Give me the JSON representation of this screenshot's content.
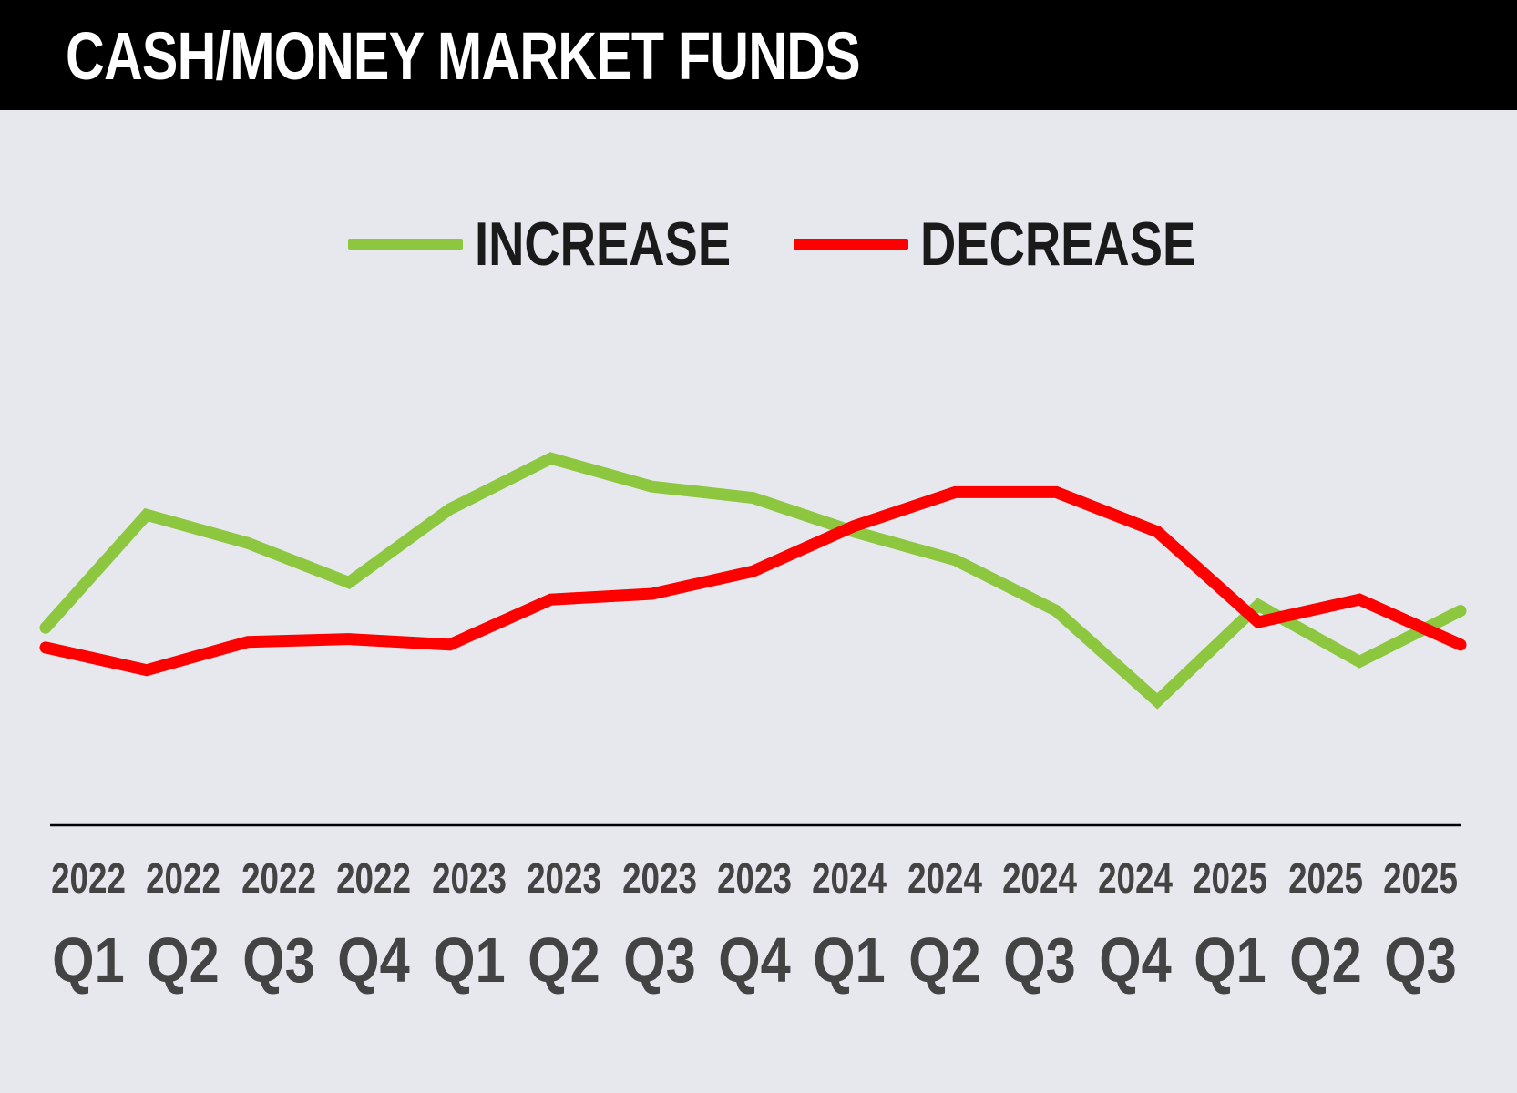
{
  "chart_data": {
    "type": "line",
    "title": "CASH/MONEY MARKET FUNDS",
    "categories": [
      {
        "year": "2022",
        "quarter": "Q1"
      },
      {
        "year": "2022",
        "quarter": "Q2"
      },
      {
        "year": "2022",
        "quarter": "Q3"
      },
      {
        "year": "2022",
        "quarter": "Q4"
      },
      {
        "year": "2023",
        "quarter": "Q1"
      },
      {
        "year": "2023",
        "quarter": "Q2"
      },
      {
        "year": "2023",
        "quarter": "Q3"
      },
      {
        "year": "2023",
        "quarter": "Q4"
      },
      {
        "year": "2024",
        "quarter": "Q1"
      },
      {
        "year": "2024",
        "quarter": "Q2"
      },
      {
        "year": "2024",
        "quarter": "Q3"
      },
      {
        "year": "2024",
        "quarter": "Q4"
      },
      {
        "year": "2025",
        "quarter": "Q1"
      },
      {
        "year": "2025",
        "quarter": "Q2"
      },
      {
        "year": "2025",
        "quarter": "Q3"
      }
    ],
    "series": [
      {
        "name": "INCREASE",
        "color": "#8dc63f",
        "values": [
          34,
          54,
          49,
          42,
          55,
          64,
          59,
          57,
          51,
          46,
          37,
          21,
          38,
          28,
          37
        ]
      },
      {
        "name": "DECREASE",
        "color": "#ff0000",
        "values": [
          30.5,
          26.5,
          31.5,
          32,
          31,
          39,
          40,
          44,
          52,
          58,
          58,
          51,
          35,
          39,
          31
        ]
      }
    ],
    "ylim": [
      0,
      100
    ],
    "grid": false,
    "legend_position": "top-center",
    "yaxis_labels": false
  }
}
